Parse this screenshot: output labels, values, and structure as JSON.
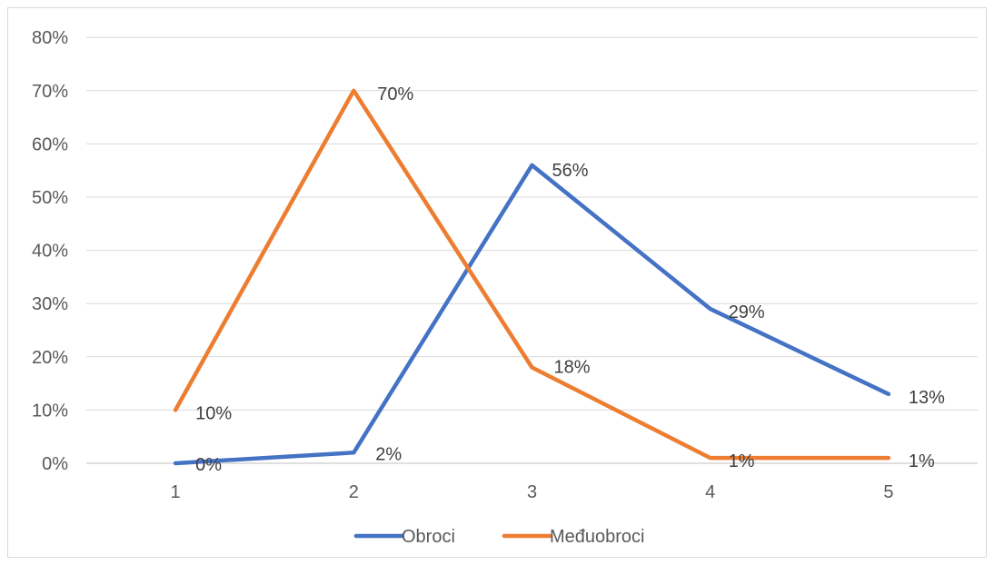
{
  "chart_data": {
    "type": "line",
    "title": "",
    "xlabel": "",
    "ylabel": "",
    "categories": [
      "1",
      "2",
      "3",
      "4",
      "5"
    ],
    "y_ticks": [
      "0%",
      "10%",
      "20%",
      "30%",
      "40%",
      "50%",
      "60%",
      "70%",
      "80%"
    ],
    "ylim": [
      0,
      80
    ],
    "grid": true,
    "legend_position": "bottom",
    "series": [
      {
        "name": "Obroci",
        "color": "#4472c4",
        "values": [
          0,
          2,
          56,
          29,
          13
        ],
        "labels": [
          "0%",
          "2%",
          "56%",
          "29%",
          "13%"
        ]
      },
      {
        "name": "Međuobroci",
        "color": "#ed7d31",
        "values": [
          10,
          70,
          18,
          1,
          1
        ],
        "labels": [
          "10%",
          "70%",
          "18%",
          "1%",
          "1%"
        ]
      }
    ]
  }
}
